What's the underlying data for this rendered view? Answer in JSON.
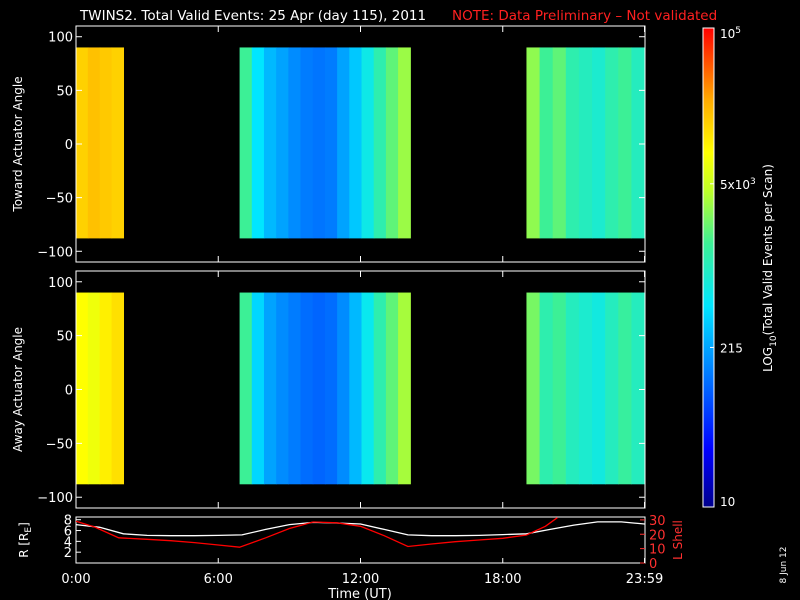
{
  "chart_data": {
    "type": "heatmap",
    "title": "TWINS2. Total Valid Events: 25 Apr (day 115), 2011",
    "note": "NOTE: Data Preliminary – Not validated",
    "date_stamp": "8 Jun 12",
    "time_axis": {
      "label": "Time (UT)",
      "range_hours": [
        0,
        24
      ],
      "ticks": [
        {
          "hour": 0,
          "label": "0:00"
        },
        {
          "hour": 6,
          "label": "6:00"
        },
        {
          "hour": 12,
          "label": "12:00"
        },
        {
          "hour": 18,
          "label": "18:00"
        },
        {
          "hour": 23.98,
          "label": "23:59"
        }
      ]
    },
    "angle_panels": [
      {
        "ylabel": "Toward Actuator Angle",
        "ylim": [
          -110,
          110
        ],
        "ticks": [
          100,
          50,
          0,
          -50,
          -100
        ],
        "tick_labels": [
          "100",
          "50",
          "0",
          "−50",
          "−100"
        ],
        "angle_range": [
          -88,
          90
        ],
        "segments": [
          {
            "start_hour": 0.0,
            "end_hour": 2.0,
            "log_level": [
              0.8,
              0.82,
              0.81,
              0.8
            ]
          },
          {
            "start_hour": 6.9,
            "end_hour": 14.1,
            "log_level": [
              0.55,
              0.42,
              0.36,
              0.33,
              0.3,
              0.28,
              0.27,
              0.28,
              0.33,
              0.38,
              0.45,
              0.52,
              0.58,
              0.63
            ]
          },
          {
            "start_hour": 19.0,
            "end_hour": 23.98,
            "log_level": [
              0.62,
              0.55,
              0.58,
              0.52,
              0.5,
              0.48,
              0.52,
              0.55,
              0.5
            ]
          }
        ]
      },
      {
        "ylabel": "Away Actuator Angle",
        "ylim": [
          -110,
          110
        ],
        "ticks": [
          100,
          50,
          0,
          -50,
          -100
        ],
        "tick_labels": [
          "100",
          "50",
          "0",
          "−50",
          "−100"
        ],
        "angle_range": [
          -88,
          90
        ],
        "segments": [
          {
            "start_hour": 0.0,
            "end_hour": 2.0,
            "log_level": [
              0.74,
              0.72,
              0.76,
              0.78
            ]
          },
          {
            "start_hour": 6.9,
            "end_hour": 14.1,
            "log_level": [
              0.55,
              0.4,
              0.33,
              0.3,
              0.28,
              0.26,
              0.25,
              0.26,
              0.3,
              0.36,
              0.44,
              0.52,
              0.58,
              0.64
            ]
          },
          {
            "start_hour": 19.0,
            "end_hour": 23.98,
            "log_level": [
              0.6,
              0.52,
              0.55,
              0.5,
              0.48,
              0.46,
              0.5,
              0.54,
              0.5
            ]
          }
        ]
      }
    ],
    "colorbar": {
      "label": "LOG",
      "label_sub": "10",
      "label_rest": "(Total Valid Events per Scan)",
      "ticks": [
        {
          "base": "10",
          "exp": "5",
          "value": 100000
        },
        {
          "base": "5x10",
          "exp": "3",
          "value": 5000
        },
        {
          "base": "215",
          "exp": "",
          "value": 215
        },
        {
          "base": "10",
          "exp": "",
          "value": 10
        }
      ],
      "range": [
        10,
        100000
      ]
    },
    "orbit_panel": {
      "left_label": "R [R",
      "left_label_sub": "E",
      "left_label_end": "]",
      "right_label": "L Shell",
      "left_ticks": [
        {
          "v": 2,
          "label": "2"
        },
        {
          "v": 4,
          "label": "4"
        },
        {
          "v": 6,
          "label": "6"
        },
        {
          "v": 8,
          "label": "8"
        }
      ],
      "right_ticks": [
        {
          "v": 0,
          "label": "0"
        },
        {
          "v": 10,
          "label": "10"
        },
        {
          "v": 20,
          "label": "20"
        },
        {
          "v": 30,
          "label": "30"
        }
      ],
      "left_range": [
        0,
        8.5
      ],
      "right_range": [
        0,
        32
      ],
      "series": [
        {
          "color": "#ffffff",
          "axis": "left",
          "x": [
            0,
            1,
            2,
            3,
            4,
            5,
            6,
            7,
            8,
            9,
            10,
            11,
            12,
            13,
            14,
            15,
            16,
            17,
            18,
            19,
            20,
            21,
            22,
            23,
            23.98
          ],
          "values": [
            7.1,
            6.6,
            5.4,
            5.1,
            5.05,
            5.05,
            5.1,
            5.2,
            6.2,
            7.1,
            7.5,
            7.4,
            7.2,
            6.2,
            5.2,
            5.05,
            5.05,
            5.1,
            5.25,
            5.4,
            6.2,
            7.0,
            7.6,
            7.6,
            7.2
          ]
        },
        {
          "color": "#ff0000",
          "axis": "right",
          "x": [
            0,
            0.8,
            1.8,
            3,
            4,
            5,
            6,
            6.9,
            8,
            9,
            10,
            11,
            12,
            13,
            14,
            15,
            16,
            17,
            18,
            19,
            19.8,
            20.3
          ],
          "values": [
            29,
            25,
            17.5,
            16.5,
            15.5,
            14.2,
            12.5,
            11,
            17.5,
            24,
            28.5,
            28,
            25.5,
            19,
            11.5,
            13.2,
            14.8,
            16,
            17.2,
            19.5,
            25.5,
            31.5
          ]
        }
      ]
    }
  }
}
